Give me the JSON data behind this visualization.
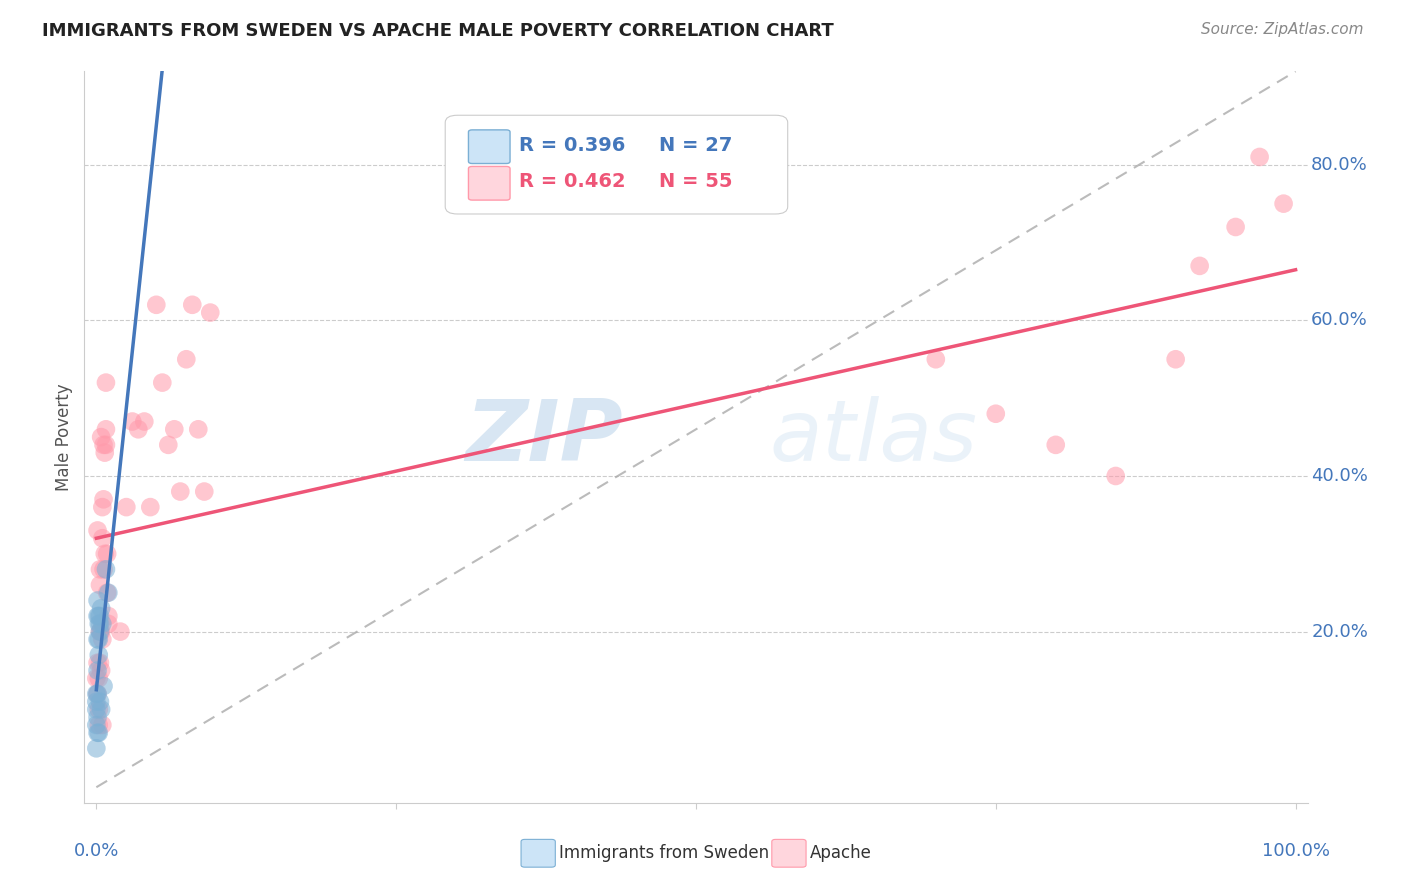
{
  "title": "IMMIGRANTS FROM SWEDEN VS APACHE MALE POVERTY CORRELATION CHART",
  "source": "Source: ZipAtlas.com",
  "ylabel": "Male Poverty",
  "legend_blue_r": "R = 0.396",
  "legend_blue_n": "N = 27",
  "legend_pink_r": "R = 0.462",
  "legend_pink_n": "N = 55",
  "blue_scatter_x": [
    0.0,
    0.0,
    0.0,
    0.0,
    0.0,
    0.001,
    0.001,
    0.001,
    0.001,
    0.001,
    0.001,
    0.001,
    0.002,
    0.002,
    0.002,
    0.002,
    0.002,
    0.003,
    0.003,
    0.003,
    0.003,
    0.004,
    0.004,
    0.005,
    0.006,
    0.008,
    0.01
  ],
  "blue_scatter_y": [
    0.08,
    0.1,
    0.11,
    0.12,
    0.05,
    0.07,
    0.09,
    0.12,
    0.15,
    0.19,
    0.22,
    0.24,
    0.07,
    0.17,
    0.19,
    0.21,
    0.22,
    0.11,
    0.2,
    0.21,
    0.22,
    0.1,
    0.23,
    0.21,
    0.13,
    0.28,
    0.25
  ],
  "pink_scatter_x": [
    0.0,
    0.001,
    0.001,
    0.001,
    0.002,
    0.002,
    0.002,
    0.003,
    0.003,
    0.003,
    0.003,
    0.004,
    0.004,
    0.004,
    0.005,
    0.005,
    0.005,
    0.005,
    0.006,
    0.006,
    0.006,
    0.007,
    0.007,
    0.008,
    0.008,
    0.008,
    0.009,
    0.009,
    0.01,
    0.01,
    0.02,
    0.025,
    0.03,
    0.035,
    0.04,
    0.045,
    0.05,
    0.055,
    0.06,
    0.065,
    0.07,
    0.075,
    0.08,
    0.085,
    0.09,
    0.095,
    0.7,
    0.75,
    0.8,
    0.85,
    0.9,
    0.92,
    0.95,
    0.97,
    0.99
  ],
  "pink_scatter_y": [
    0.14,
    0.12,
    0.16,
    0.33,
    0.08,
    0.14,
    0.1,
    0.16,
    0.2,
    0.26,
    0.28,
    0.15,
    0.2,
    0.45,
    0.08,
    0.19,
    0.32,
    0.36,
    0.28,
    0.37,
    0.44,
    0.3,
    0.43,
    0.44,
    0.52,
    0.46,
    0.25,
    0.3,
    0.21,
    0.22,
    0.2,
    0.36,
    0.47,
    0.46,
    0.47,
    0.36,
    0.62,
    0.52,
    0.44,
    0.46,
    0.38,
    0.55,
    0.62,
    0.46,
    0.38,
    0.61,
    0.55,
    0.48,
    0.44,
    0.4,
    0.55,
    0.67,
    0.72,
    0.81,
    0.75
  ],
  "blue_color": "#7BAFD4",
  "pink_color": "#FF99AA",
  "blue_line_color": "#4477BB",
  "pink_line_color": "#EE5577",
  "grid_color": "#CCCCCC",
  "background_color": "#FFFFFF",
  "watermark_zip": "ZIP",
  "watermark_atlas": "atlas",
  "xlim_max": 1.0,
  "ylim_min": -0.02,
  "ylim_max": 0.92,
  "ytick_vals": [
    0.2,
    0.4,
    0.6,
    0.8
  ],
  "ytick_labels": [
    "20.0%",
    "40.0%",
    "60.0%",
    "80.0%"
  ]
}
